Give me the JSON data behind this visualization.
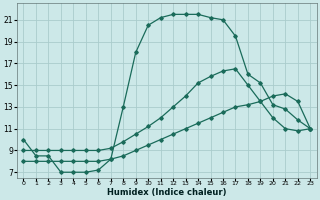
{
  "xlabel": "Humidex (Indice chaleur)",
  "bg_color": "#cce8e8",
  "grid_color": "#aacccc",
  "line_color": "#1a6b5a",
  "marker_color": "#1a6b5a",
  "xlim": [
    -0.5,
    23.5
  ],
  "ylim": [
    6.5,
    22.5
  ],
  "xticks": [
    0,
    1,
    2,
    3,
    4,
    5,
    6,
    7,
    8,
    9,
    10,
    11,
    12,
    13,
    14,
    15,
    16,
    17,
    18,
    19,
    20,
    21,
    22,
    23
  ],
  "yticks": [
    7,
    9,
    11,
    13,
    15,
    17,
    19,
    21
  ],
  "series1_x": [
    0,
    1,
    2,
    3,
    4,
    5,
    6,
    7,
    8,
    9,
    10,
    11,
    12,
    13,
    14,
    15,
    16,
    17,
    18,
    19,
    20,
    21,
    22,
    23
  ],
  "series1_y": [
    10.0,
    8.5,
    8.5,
    7.0,
    7.0,
    7.0,
    7.2,
    8.2,
    13.0,
    18.0,
    20.5,
    21.2,
    21.5,
    21.5,
    21.5,
    21.2,
    21.0,
    19.5,
    16.0,
    15.2,
    13.2,
    12.8,
    11.8,
    11.0
  ],
  "series2_x": [
    0,
    1,
    2,
    3,
    4,
    5,
    6,
    7,
    8,
    9,
    10,
    11,
    12,
    13,
    14,
    15,
    16,
    17,
    18,
    19,
    20,
    21,
    22,
    23
  ],
  "series2_y": [
    9.0,
    9.0,
    9.0,
    9.0,
    9.0,
    9.0,
    9.0,
    9.2,
    9.8,
    10.5,
    11.2,
    12.0,
    13.0,
    14.0,
    15.2,
    15.8,
    16.3,
    16.5,
    15.0,
    13.5,
    12.0,
    11.0,
    10.8,
    11.0
  ],
  "series3_x": [
    0,
    1,
    2,
    3,
    4,
    5,
    6,
    7,
    8,
    9,
    10,
    11,
    12,
    13,
    14,
    15,
    16,
    17,
    18,
    19,
    20,
    21,
    22,
    23
  ],
  "series3_y": [
    8.0,
    8.0,
    8.0,
    8.0,
    8.0,
    8.0,
    8.0,
    8.2,
    8.5,
    9.0,
    9.5,
    10.0,
    10.5,
    11.0,
    11.5,
    12.0,
    12.5,
    13.0,
    13.2,
    13.5,
    14.0,
    14.2,
    13.5,
    11.0
  ]
}
